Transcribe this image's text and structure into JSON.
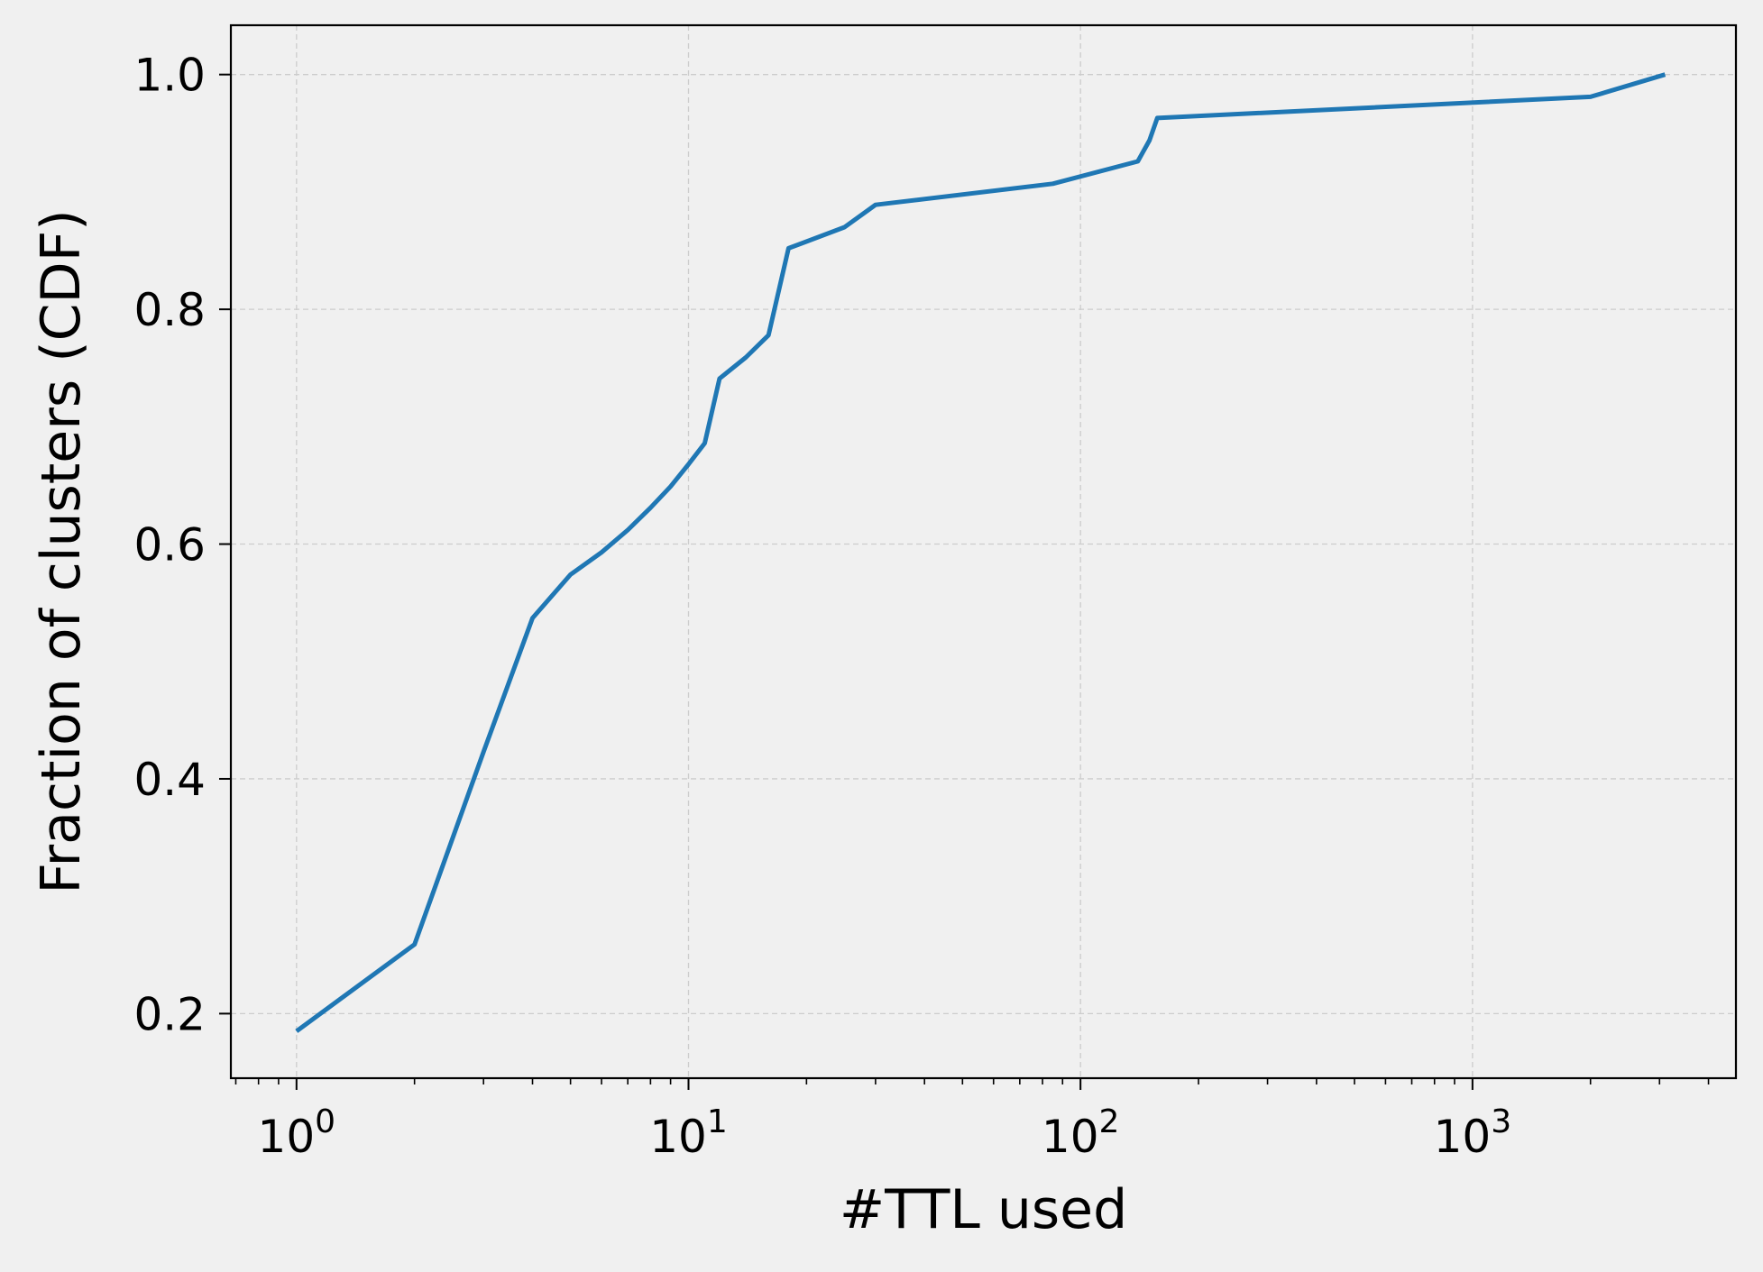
{
  "chart_data": {
    "type": "line",
    "title": "",
    "xlabel": "#TTL used",
    "ylabel": "Fraction of clusters (CDF)",
    "xscale": "log",
    "xlim": [
      0.68,
      4700
    ],
    "ylim": [
      0.145,
      1.042
    ],
    "grid": true,
    "colors": {
      "background": "#f0f0f0",
      "line": "#1f77b4",
      "grid": "#cccccc",
      "axes": "#000000"
    },
    "x_ticks": [
      {
        "value": 1,
        "base": "10",
        "exp": "0"
      },
      {
        "value": 10,
        "base": "10",
        "exp": "1"
      },
      {
        "value": 100,
        "base": "10",
        "exp": "2"
      },
      {
        "value": 1000,
        "base": "10",
        "exp": "3"
      }
    ],
    "y_ticks": [
      {
        "value": 0.2,
        "label": "0.2"
      },
      {
        "value": 0.4,
        "label": "0.4"
      },
      {
        "value": 0.6,
        "label": "0.6"
      },
      {
        "value": 0.8,
        "label": "0.8"
      },
      {
        "value": 1.0,
        "label": "1.0"
      }
    ],
    "series": [
      {
        "x": [
          1,
          2,
          3,
          4,
          5,
          6,
          7,
          8,
          9,
          10,
          11,
          12,
          14,
          16,
          18,
          25,
          30,
          85,
          140,
          150,
          157,
          2000,
          3100
        ],
        "y": [
          0.185,
          0.259,
          0.423,
          0.537,
          0.574,
          0.593,
          0.612,
          0.631,
          0.649,
          0.668,
          0.686,
          0.741,
          0.759,
          0.778,
          0.852,
          0.87,
          0.889,
          0.907,
          0.926,
          0.944,
          0.963,
          0.981,
          1.0
        ]
      }
    ]
  }
}
